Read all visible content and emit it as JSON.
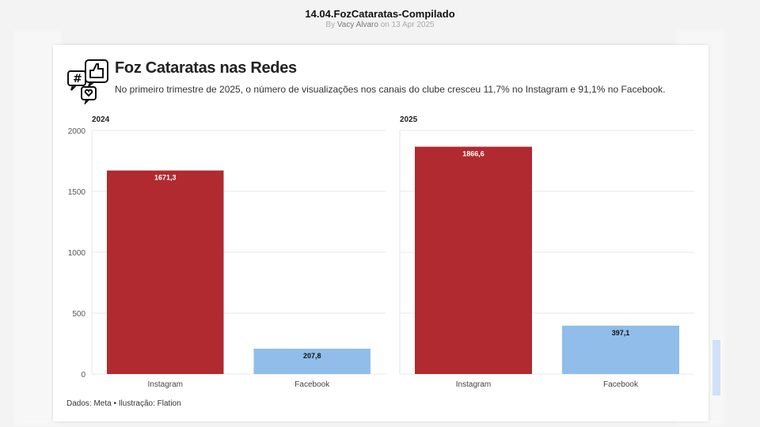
{
  "header": {
    "title": "14.04.FozCataratas-Compilado",
    "by": "By",
    "author": "Vacy Alvaro",
    "on": "on",
    "date": "13 Apr 2025"
  },
  "card": {
    "title": "Foz Cataratas nas Redes",
    "subtitle": "No primeiro trimestre de 2025, o número de visualizações nos canais do clube cresceu 11,7% no Instagram e 91,1% no Facebook.",
    "footer": "Dados: Meta • Ilustração: Flation",
    "icon": "social-media-icon"
  },
  "chart_data": [
    {
      "type": "bar",
      "title": "2024",
      "categories": [
        "Instagram",
        "Facebook"
      ],
      "values": [
        1671.3,
        207.8
      ],
      "labels": [
        "1671,3",
        "207,8"
      ],
      "colors": [
        "#b02a2f",
        "#90bde9"
      ],
      "ylim": [
        0,
        2000
      ],
      "yticks": [
        "0",
        "500",
        "1000",
        "1500",
        "2000"
      ],
      "grid": true
    },
    {
      "type": "bar",
      "title": "2025",
      "categories": [
        "Instagram",
        "Facebook"
      ],
      "values": [
        1866.6,
        397.1
      ],
      "labels": [
        "1866,6",
        "397,1"
      ],
      "colors": [
        "#b02a2f",
        "#90bde9"
      ],
      "ylim": [
        0,
        2000
      ],
      "yticks": [],
      "grid": true
    }
  ]
}
